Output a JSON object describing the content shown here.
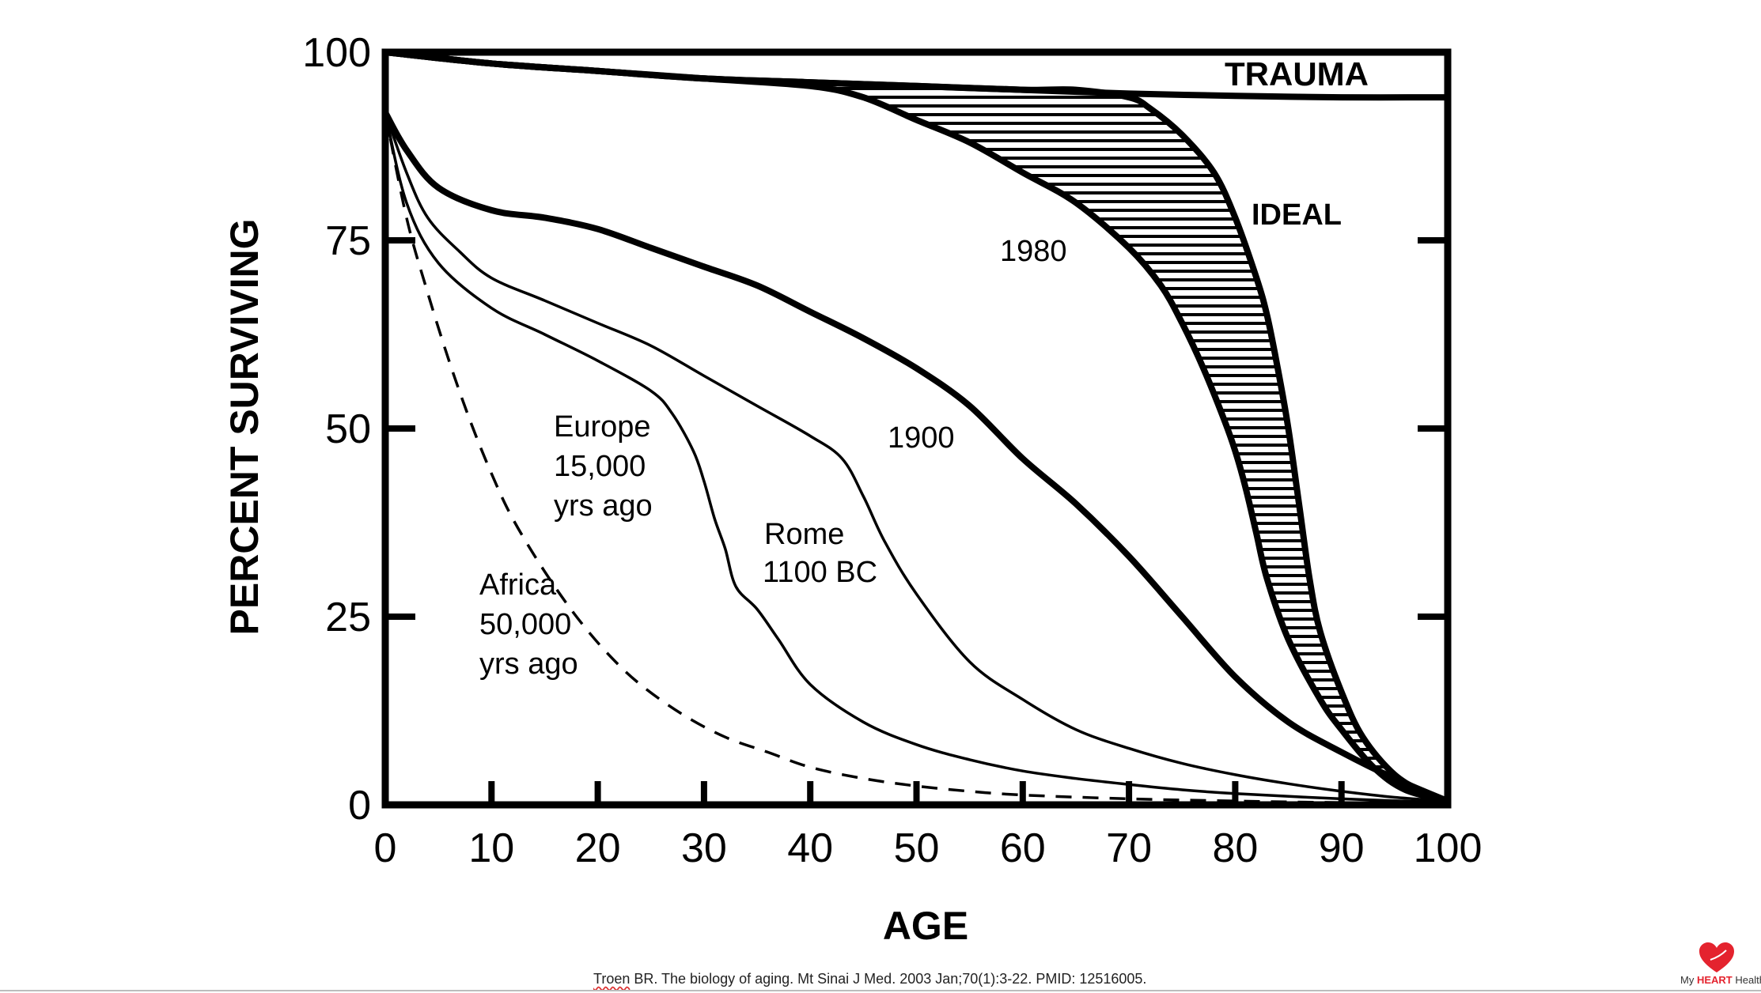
{
  "chart_data": {
    "type": "line",
    "xlabel": "AGE",
    "ylabel": "PERCENT SURVIVING",
    "xlim": [
      0,
      100
    ],
    "ylim": [
      0,
      100
    ],
    "x_ticks": [
      0,
      10,
      20,
      30,
      40,
      50,
      60,
      70,
      80,
      90,
      100
    ],
    "y_ticks": [
      0,
      25,
      50,
      75,
      100
    ],
    "legend": "none",
    "grid": false,
    "series": [
      {
        "name": "TRAUMA",
        "style": "thick",
        "points": [
          [
            0,
            100
          ],
          [
            10,
            98.5
          ],
          [
            20,
            97.5
          ],
          [
            30,
            96.5
          ],
          [
            40,
            96
          ],
          [
            50,
            95.5
          ],
          [
            60,
            95
          ],
          [
            70,
            94.5
          ],
          [
            80,
            94.2
          ],
          [
            90,
            94
          ],
          [
            100,
            94
          ]
        ]
      },
      {
        "name": "IDEAL",
        "style": "thick",
        "points": [
          [
            0,
            100
          ],
          [
            10,
            98.5
          ],
          [
            20,
            97.5
          ],
          [
            30,
            96.5
          ],
          [
            40,
            96
          ],
          [
            50,
            95.5
          ],
          [
            60,
            95
          ],
          [
            65,
            95
          ],
          [
            70,
            94
          ],
          [
            72,
            92.5
          ],
          [
            75,
            89
          ],
          [
            78,
            84
          ],
          [
            80,
            78
          ],
          [
            82,
            70
          ],
          [
            83,
            65
          ],
          [
            84,
            58
          ],
          [
            85,
            50
          ],
          [
            86,
            40
          ],
          [
            87,
            30
          ],
          [
            88,
            23
          ],
          [
            90,
            15
          ],
          [
            92,
            9
          ],
          [
            95,
            4
          ],
          [
            98,
            1.5
          ],
          [
            100,
            0.5
          ]
        ]
      },
      {
        "name": "1980",
        "style": "thick",
        "points": [
          [
            0,
            100
          ],
          [
            10,
            98.5
          ],
          [
            20,
            97.5
          ],
          [
            30,
            96.5
          ],
          [
            40,
            95.5
          ],
          [
            45,
            94
          ],
          [
            50,
            91
          ],
          [
            55,
            88
          ],
          [
            60,
            84
          ],
          [
            65,
            80
          ],
          [
            70,
            74
          ],
          [
            73,
            69
          ],
          [
            75,
            64
          ],
          [
            77,
            58
          ],
          [
            79,
            51
          ],
          [
            80,
            47
          ],
          [
            81,
            42
          ],
          [
            82,
            36
          ],
          [
            83,
            30
          ],
          [
            85,
            22
          ],
          [
            88,
            14
          ],
          [
            90,
            10
          ],
          [
            93,
            5
          ],
          [
            96,
            2
          ],
          [
            100,
            0.5
          ]
        ]
      },
      {
        "name": "1900",
        "style": "thick",
        "points": [
          [
            0,
            92
          ],
          [
            2,
            87
          ],
          [
            5,
            82
          ],
          [
            10,
            79
          ],
          [
            15,
            78
          ],
          [
            20,
            76.5
          ],
          [
            25,
            74
          ],
          [
            30,
            71.5
          ],
          [
            35,
            69
          ],
          [
            40,
            65.5
          ],
          [
            45,
            62
          ],
          [
            50,
            58
          ],
          [
            55,
            53
          ],
          [
            60,
            46
          ],
          [
            65,
            40
          ],
          [
            70,
            33
          ],
          [
            75,
            25
          ],
          [
            80,
            17
          ],
          [
            85,
            11
          ],
          [
            90,
            7
          ],
          [
            95,
            3.5
          ],
          [
            100,
            0.5
          ]
        ]
      },
      {
        "name": "Rome 1100 BC",
        "style": "thin",
        "points": [
          [
            0,
            92
          ],
          [
            2,
            84
          ],
          [
            4,
            78
          ],
          [
            7,
            73.5
          ],
          [
            10,
            70
          ],
          [
            15,
            67
          ],
          [
            20,
            64
          ],
          [
            25,
            61
          ],
          [
            30,
            57
          ],
          [
            35,
            53
          ],
          [
            40,
            49
          ],
          [
            43,
            46
          ],
          [
            45,
            41
          ],
          [
            47,
            35
          ],
          [
            50,
            28
          ],
          [
            55,
            19
          ],
          [
            60,
            14
          ],
          [
            65,
            10
          ],
          [
            70,
            7.5
          ],
          [
            75,
            5.5
          ],
          [
            80,
            4
          ],
          [
            85,
            2.8
          ],
          [
            90,
            1.8
          ],
          [
            95,
            1
          ],
          [
            100,
            0.5
          ]
        ]
      },
      {
        "name": "Europe 15,000 yrs ago",
        "style": "thin",
        "points": [
          [
            0,
            92
          ],
          [
            2,
            80
          ],
          [
            5,
            72
          ],
          [
            10,
            66
          ],
          [
            15,
            62.5
          ],
          [
            20,
            59
          ],
          [
            25,
            55
          ],
          [
            27,
            52
          ],
          [
            29,
            47
          ],
          [
            30,
            43
          ],
          [
            31,
            38
          ],
          [
            32,
            34
          ],
          [
            33,
            29
          ],
          [
            35,
            26
          ],
          [
            37,
            22
          ],
          [
            40,
            16
          ],
          [
            45,
            11
          ],
          [
            50,
            8
          ],
          [
            55,
            6
          ],
          [
            60,
            4.5
          ],
          [
            65,
            3.5
          ],
          [
            70,
            2.7
          ],
          [
            75,
            2
          ],
          [
            80,
            1.5
          ],
          [
            90,
            0.8
          ],
          [
            100,
            0.3
          ]
        ]
      },
      {
        "name": "Africa 50,000 yrs ago",
        "style": "dashed",
        "points": [
          [
            0,
            92
          ],
          [
            2,
            78
          ],
          [
            4,
            68
          ],
          [
            6,
            59
          ],
          [
            8,
            51
          ],
          [
            10,
            44
          ],
          [
            12,
            38
          ],
          [
            15,
            31
          ],
          [
            18,
            25
          ],
          [
            21,
            20
          ],
          [
            24,
            16
          ],
          [
            28,
            12
          ],
          [
            32,
            9
          ],
          [
            36,
            7
          ],
          [
            40,
            5
          ],
          [
            45,
            3.5
          ],
          [
            50,
            2.5
          ],
          [
            55,
            1.8
          ],
          [
            60,
            1.3
          ],
          [
            70,
            0.8
          ],
          [
            80,
            0.5
          ],
          [
            90,
            0.3
          ],
          [
            100,
            0.2
          ]
        ]
      }
    ]
  },
  "annotations": {
    "trauma": "TRAUMA",
    "ideal": "IDEAL",
    "y1980": "1980",
    "y1900": "1900",
    "rome_1": "Rome",
    "rome_2": "1100 BC",
    "europe_1": "Europe",
    "europe_2": "15,000",
    "europe_3": "yrs ago",
    "africa_1": "Africa",
    "africa_2": "50,000",
    "africa_3": "yrs ago"
  },
  "citation": {
    "author": "Troen",
    "rest": " BR. The biology of aging. Mt Sinai J Med. 2003 Jan;70(1):3-22. PMID: 12516005."
  },
  "brand": {
    "prefix": "My ",
    "highlight": "HEART",
    "suffix": " Health",
    "icon": "heart-icon",
    "color": "#e4232e"
  }
}
